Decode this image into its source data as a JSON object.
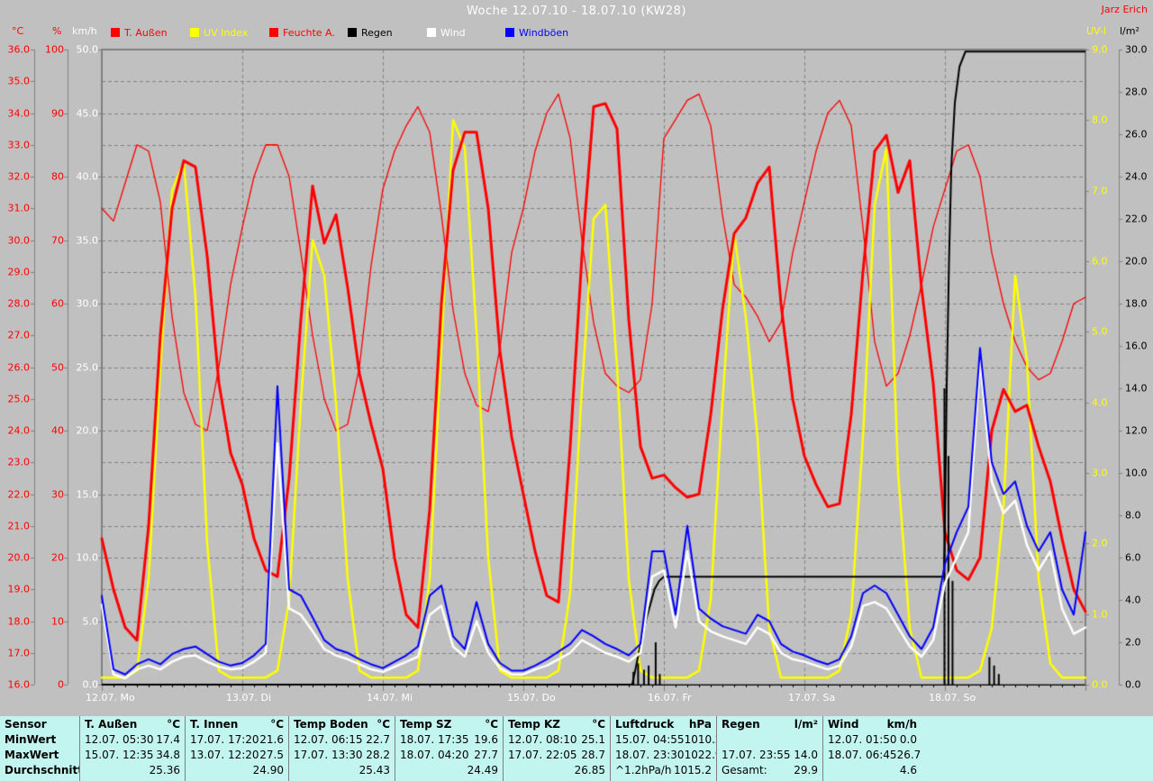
{
  "title": "Woche 12.07.10 - 18.07.10 (KW28)",
  "author": "Jarz Erich",
  "axis_headers": {
    "celsius": "°C",
    "percent": "%",
    "kmh": "km/h",
    "uv": "UV-I",
    "lm2": "l/m²"
  },
  "axes": [
    {
      "id": "celsius",
      "unit": "°C",
      "min": 16,
      "max": 36,
      "step": 1,
      "decimals": 1,
      "color": "#ff0000"
    },
    {
      "id": "percent",
      "unit": "%",
      "min": 0,
      "max": 100,
      "step": 10,
      "decimals": 0,
      "color": "#ff0000"
    },
    {
      "id": "kmh",
      "unit": "km/h",
      "min": 0,
      "max": 50,
      "step": 5,
      "decimals": 1,
      "color": "#ffffff"
    },
    {
      "id": "uv",
      "unit": "UV-I",
      "min": 0,
      "max": 9,
      "step": 1,
      "decimals": 1,
      "color": "#ffff00"
    },
    {
      "id": "lm2",
      "unit": "l/m²",
      "min": 0,
      "max": 30,
      "step": 2,
      "decimals": 1,
      "color": "#000000"
    }
  ],
  "legend": [
    {
      "name": "t_aussen",
      "label": "T. Außen",
      "color": "#ff0000",
      "text_color": "#ff0000"
    },
    {
      "name": "uv",
      "label": "UV Index",
      "color": "#ffff00",
      "text_color": "#ffff00"
    },
    {
      "name": "feuchte",
      "label": "Feuchte A.",
      "color": "#ff0000",
      "text_color": "#ff0000"
    },
    {
      "name": "regen",
      "label": "Regen",
      "color": "#000000",
      "text_color": "#000000"
    },
    {
      "name": "wind",
      "label": "Wind",
      "color": "#ffffff",
      "text_color": "#ffffff"
    },
    {
      "name": "windboen",
      "label": "Windböen",
      "color": "#0000ff",
      "text_color": "#0000ff"
    }
  ],
  "x_axis": {
    "days": [
      "12.07. Mo",
      "13.07. Di",
      "14.07. Mi",
      "15.07. Do",
      "16.07. Fr",
      "17.07. Sa",
      "18.07. So"
    ]
  },
  "chart_data": {
    "type": "line",
    "title": "Woche 12.07.10 - 18.07.10 (KW28)",
    "sample_interval_hours": 2,
    "x_range_hours": [
      0,
      168
    ],
    "grid": "dashed",
    "series": [
      {
        "name": "t_aussen",
        "label": "T. Außen",
        "axis": "celsius",
        "values": [
          20.6,
          19.0,
          17.8,
          17.4,
          21.0,
          27.0,
          31.0,
          32.5,
          32.3,
          29.5,
          25.5,
          23.3,
          22.3,
          20.6,
          19.6,
          19.4,
          22.5,
          27.5,
          31.7,
          29.9,
          30.8,
          28.5,
          25.8,
          24.2,
          22.8,
          20.0,
          18.2,
          17.8,
          21.5,
          28.0,
          32.2,
          33.4,
          33.4,
          31.0,
          26.5,
          23.8,
          22.0,
          20.2,
          18.8,
          18.6,
          23.5,
          29.5,
          34.2,
          34.3,
          33.5,
          27.5,
          23.5,
          22.5,
          22.6,
          22.2,
          21.9,
          22.0,
          24.5,
          27.8,
          30.2,
          30.7,
          31.8,
          32.3,
          28.0,
          25.0,
          23.2,
          22.3,
          21.6,
          21.7,
          24.5,
          29.0,
          32.8,
          33.3,
          31.5,
          32.5,
          28.5,
          25.5,
          20.8,
          19.6,
          19.3,
          20.0,
          24.0,
          25.3,
          24.6,
          24.8,
          23.5,
          22.4,
          20.6,
          19.0,
          18.3
        ]
      },
      {
        "name": "feuchte",
        "label": "Feuchte A.",
        "axis": "percent",
        "values": [
          75,
          73,
          79,
          85,
          84,
          76,
          58,
          46,
          41,
          40,
          50,
          63,
          72,
          80,
          85,
          85,
          80,
          68,
          55,
          45,
          40,
          41,
          50,
          66,
          78,
          84,
          88,
          91,
          87,
          74,
          59,
          49,
          44,
          43,
          53,
          68,
          75,
          84,
          90,
          93,
          86,
          70,
          57,
          49,
          47,
          46,
          48,
          60,
          86,
          89,
          92,
          93,
          88,
          74,
          63,
          61,
          58,
          54,
          57,
          68,
          76,
          84,
          90,
          92,
          88,
          72,
          54,
          47,
          49,
          55,
          63,
          72,
          78,
          84,
          85,
          80,
          68,
          60,
          54,
          50,
          48,
          49,
          54,
          60,
          61
        ]
      },
      {
        "name": "uv",
        "label": "UV Index",
        "axis": "uv",
        "values": [
          0.1,
          0.1,
          0.1,
          0.2,
          1.5,
          4.5,
          7.0,
          7.4,
          5.5,
          2.0,
          0.2,
          0.1,
          0.1,
          0.1,
          0.1,
          0.2,
          1.2,
          4.0,
          6.3,
          5.8,
          4.0,
          1.5,
          0.2,
          0.1,
          0.1,
          0.1,
          0.1,
          0.2,
          1.5,
          4.8,
          8.0,
          7.6,
          5.0,
          1.8,
          0.2,
          0.1,
          0.1,
          0.1,
          0.1,
          0.2,
          1.3,
          4.2,
          6.6,
          6.8,
          4.5,
          1.5,
          0.2,
          0.1,
          0.1,
          0.1,
          0.1,
          0.2,
          1.2,
          4.0,
          6.4,
          5.2,
          3.5,
          0.8,
          0.1,
          0.1,
          0.1,
          0.1,
          0.1,
          0.2,
          1.0,
          3.5,
          6.8,
          7.6,
          3.0,
          0.8,
          0.1,
          0.1,
          0.1,
          0.1,
          0.1,
          0.2,
          0.8,
          2.5,
          5.8,
          4.6,
          1.5,
          0.3,
          0.1,
          0.1,
          0.1
        ]
      },
      {
        "name": "wind",
        "label": "Wind",
        "axis": "kmh",
        "values": [
          6.3,
          0.8,
          0.5,
          1.2,
          1.5,
          1.2,
          1.8,
          2.2,
          2.3,
          1.8,
          1.4,
          1.2,
          1.3,
          1.8,
          2.5,
          19.0,
          6.0,
          5.5,
          4.2,
          2.8,
          2.3,
          2.0,
          1.6,
          1.2,
          1.0,
          1.4,
          1.8,
          2.2,
          5.5,
          6.2,
          3.0,
          2.2,
          5.0,
          2.5,
          1.3,
          0.8,
          0.8,
          1.2,
          1.5,
          2.0,
          2.5,
          3.5,
          3.0,
          2.5,
          2.2,
          1.8,
          2.5,
          8.5,
          9.0,
          4.5,
          10.5,
          5.0,
          4.2,
          3.8,
          3.5,
          3.2,
          4.5,
          4.0,
          2.5,
          2.0,
          1.8,
          1.5,
          1.2,
          1.5,
          3.0,
          6.2,
          6.5,
          6.0,
          4.5,
          3.0,
          2.2,
          3.5,
          8.0,
          10.0,
          12.0,
          25.5,
          16.0,
          13.5,
          14.5,
          11.0,
          9.0,
          10.5,
          6.0,
          4.0,
          4.5
        ]
      },
      {
        "name": "windboen",
        "label": "Windböen",
        "axis": "kmh",
        "values": [
          7.0,
          1.2,
          0.8,
          1.6,
          2.0,
          1.6,
          2.4,
          2.8,
          3.0,
          2.4,
          1.8,
          1.5,
          1.7,
          2.3,
          3.2,
          23.5,
          7.5,
          7.0,
          5.3,
          3.5,
          2.8,
          2.5,
          2.0,
          1.6,
          1.3,
          1.8,
          2.3,
          3.0,
          7.0,
          7.8,
          3.8,
          2.8,
          6.5,
          3.2,
          1.7,
          1.1,
          1.1,
          1.5,
          2.0,
          2.6,
          3.2,
          4.3,
          3.8,
          3.2,
          2.8,
          2.3,
          3.2,
          10.5,
          10.5,
          5.5,
          12.5,
          6.0,
          5.2,
          4.6,
          4.3,
          4.0,
          5.5,
          5.0,
          3.2,
          2.6,
          2.3,
          1.9,
          1.6,
          2.0,
          3.8,
          7.2,
          7.8,
          7.2,
          5.5,
          3.8,
          2.8,
          4.5,
          9.5,
          12.0,
          14.0,
          26.5,
          17.5,
          15.0,
          16.0,
          12.5,
          10.5,
          12.0,
          7.5,
          5.5,
          12.0
        ]
      }
    ],
    "rain_total_points": [
      [
        0,
        0
      ],
      [
        90.6,
        0
      ],
      [
        91.2,
        0.8
      ],
      [
        92.0,
        1.9
      ],
      [
        92.8,
        2.9
      ],
      [
        93.6,
        3.7
      ],
      [
        94.4,
        4.5
      ],
      [
        95.2,
        4.9
      ],
      [
        96.0,
        5.1
      ],
      [
        143.8,
        5.1
      ],
      [
        143.95,
        6.5
      ],
      [
        144.3,
        14.0
      ],
      [
        144.7,
        20.0
      ],
      [
        145.1,
        24.5
      ],
      [
        145.7,
        27.5
      ],
      [
        146.5,
        29.2
      ],
      [
        147.5,
        29.9
      ],
      [
        168,
        29.9
      ]
    ],
    "rain_rate_bars": [
      [
        90.8,
        0.6
      ],
      [
        91.6,
        1.0
      ],
      [
        92.6,
        0.7
      ],
      [
        93.4,
        0.9
      ],
      [
        94.6,
        2.0
      ],
      [
        95.3,
        0.5
      ],
      [
        143.92,
        14.0
      ],
      [
        144.6,
        10.8
      ],
      [
        145.3,
        4.9
      ],
      [
        151.6,
        1.3
      ],
      [
        152.4,
        0.9
      ],
      [
        153.2,
        0.5
      ]
    ]
  },
  "stats_table": {
    "row_labels": [
      "Sensor",
      "MinWert",
      "MaxWert",
      "Durchschnitt"
    ],
    "columns": [
      {
        "name": "T. Außen",
        "unit": "°C",
        "rows": [
          [
            "12.07. 05:30",
            "17.4"
          ],
          [
            "15.07. 12:35",
            "34.8"
          ],
          [
            "",
            "25.36"
          ]
        ]
      },
      {
        "name": "T. Innen",
        "unit": "°C",
        "rows": [
          [
            "17.07. 17:20",
            "21.6"
          ],
          [
            "13.07. 12:20",
            "27.5"
          ],
          [
            "",
            "24.90"
          ]
        ]
      },
      {
        "name": "Temp Boden",
        "unit": "°C",
        "rows": [
          [
            "12.07. 06:15",
            "22.7"
          ],
          [
            "17.07. 13:30",
            "28.2"
          ],
          [
            "",
            "25.43"
          ]
        ]
      },
      {
        "name": "Temp SZ",
        "unit": "°C",
        "rows": [
          [
            "18.07. 17:35",
            "19.6"
          ],
          [
            "18.07. 04:20",
            "27.7"
          ],
          [
            "",
            "24.49"
          ]
        ]
      },
      {
        "name": "Temp KZ",
        "unit": "°C",
        "rows": [
          [
            "12.07. 08:10",
            "25.1"
          ],
          [
            "17.07. 22:05",
            "28.7"
          ],
          [
            "",
            "26.85"
          ]
        ]
      },
      {
        "name": "Luftdruck",
        "unit": "hPa",
        "rows": [
          [
            "15.07. 04:55",
            "1010.2"
          ],
          [
            "18.07. 23:30",
            "1022.9"
          ],
          [
            "^1.2hPa/h",
            "1015.2"
          ]
        ]
      },
      {
        "name": "Regen",
        "unit": "l/m²",
        "rows": [
          [
            "",
            ""
          ],
          [
            "17.07. 23:55",
            "14.0"
          ],
          [
            "Gesamt:",
            "29.9"
          ]
        ]
      },
      {
        "name": "Wind",
        "unit": "km/h",
        "rows": [
          [
            "12.07. 01:50",
            "0.0"
          ],
          [
            "18.07. 06:45",
            "26.7"
          ],
          [
            "",
            "4.6"
          ]
        ]
      }
    ]
  }
}
